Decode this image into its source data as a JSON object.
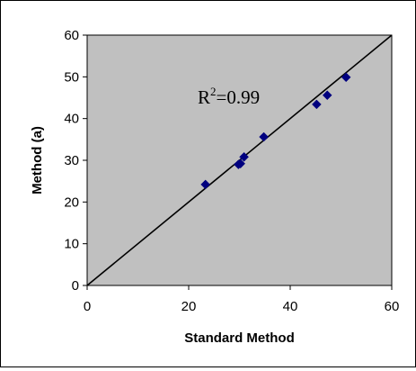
{
  "chart_data": {
    "type": "scatter",
    "xlabel": "Standard Method",
    "ylabel": "Method (a)",
    "xlim": [
      0,
      60
    ],
    "ylim": [
      0,
      60
    ],
    "xticks": [
      "0",
      "20",
      "40",
      "60"
    ],
    "yticks": [
      "0",
      "10",
      "20",
      "30",
      "40",
      "50",
      "60"
    ],
    "grid": false,
    "legend": "none",
    "plot_background": "#c0c0c0",
    "marker_color": "#00007f",
    "marker_shape": "diamond",
    "series": [
      {
        "points": [
          {
            "x": 23.3,
            "y": 24.2
          },
          {
            "x": 29.8,
            "y": 29.0
          },
          {
            "x": 30.2,
            "y": 29.2
          },
          {
            "x": 30.9,
            "y": 30.8
          },
          {
            "x": 34.8,
            "y": 35.6
          },
          {
            "x": 45.2,
            "y": 43.4
          },
          {
            "x": 47.3,
            "y": 45.6
          },
          {
            "x": 51.0,
            "y": 49.9
          }
        ]
      }
    ],
    "reference_line": {
      "from": [
        0,
        0
      ],
      "to": [
        60,
        60
      ],
      "color": "#000000"
    },
    "annotation": {
      "base": "R",
      "superscript": "2",
      "rest": "=0.99"
    }
  }
}
